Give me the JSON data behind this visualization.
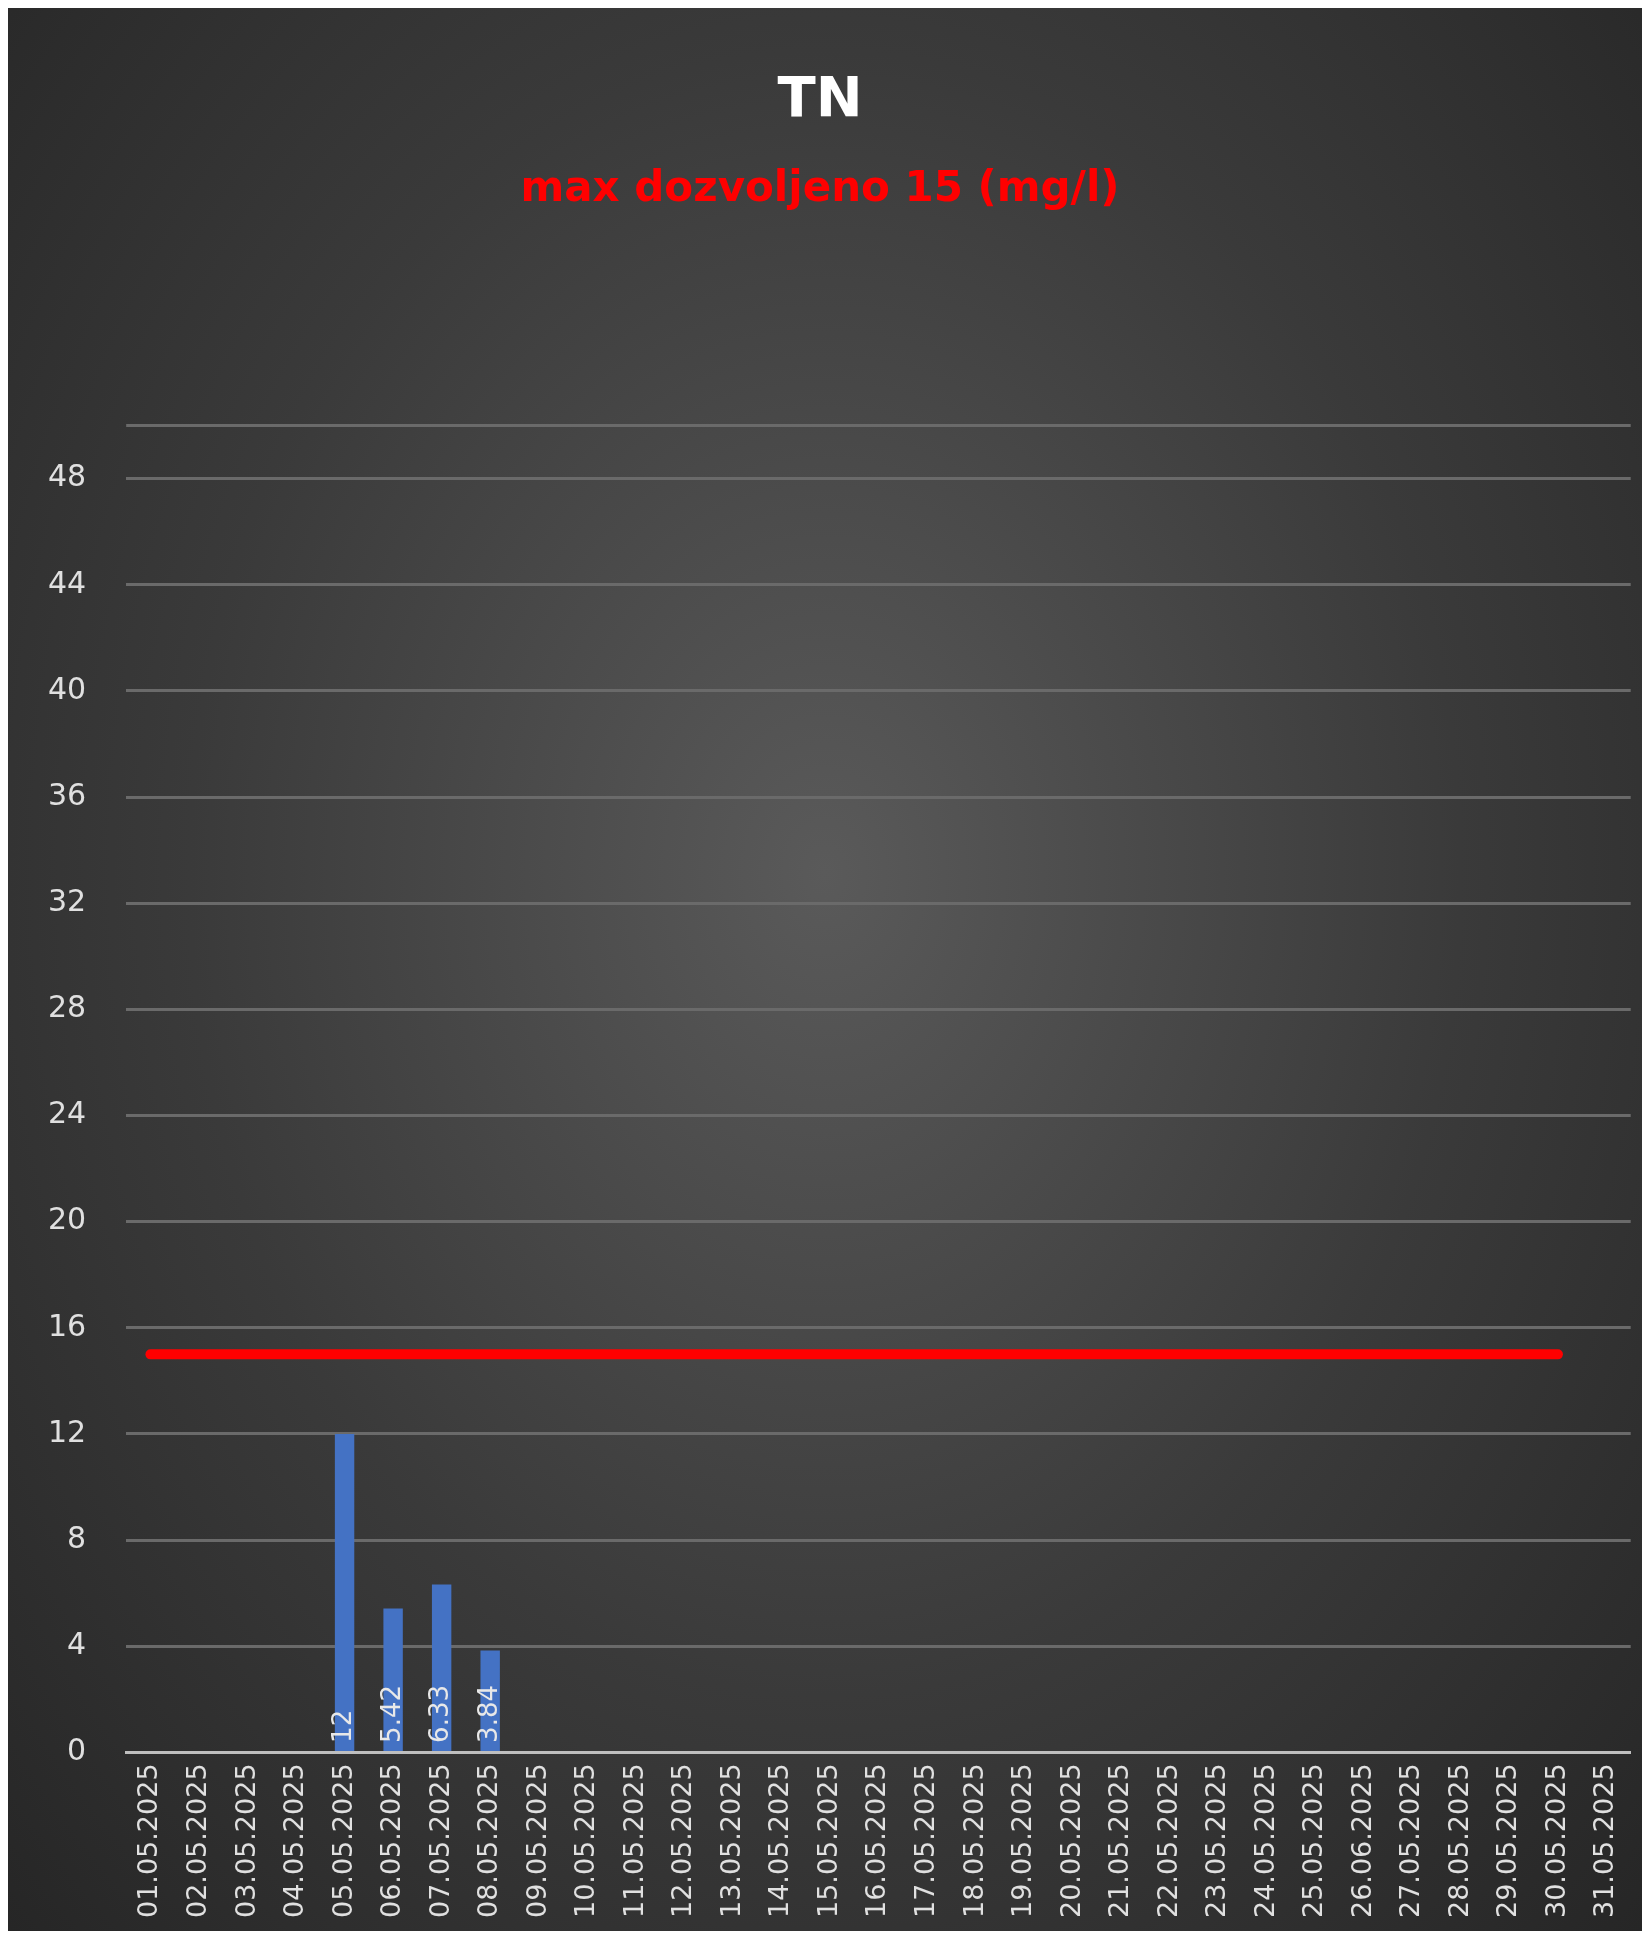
{
  "chart_data": {
    "type": "bar",
    "title": "TN",
    "subtitle": "max dozvoljeno 15 (mg/l)",
    "categories": [
      "01.05.2025",
      "02.05.2025",
      "03.05.2025",
      "04.05.2025",
      "05.05.2025",
      "06.05.2025",
      "07.05.2025",
      "08.05.2025",
      "09.05.2025",
      "10.05.2025",
      "11.05.2025",
      "12.05.2025",
      "13.05.2025",
      "14.05.2025",
      "15.05.2025",
      "16.05.2025",
      "17.05.2025",
      "18.05.2025",
      "19.05.2025",
      "20.05.2025",
      "21.05.2025",
      "22.05.2025",
      "23.05.2025",
      "24.05.2025",
      "25.05.2025",
      "26.06.2025",
      "27.05.2025",
      "28.05.2025",
      "29.05.2025",
      "30.05.2025",
      "31.05.2025"
    ],
    "series": [
      {
        "color": "#4472c4",
        "values": [
          null,
          null,
          null,
          null,
          12,
          5.42,
          6.33,
          3.84,
          null,
          null,
          null,
          null,
          null,
          null,
          null,
          null,
          null,
          null,
          null,
          null,
          null,
          null,
          null,
          null,
          null,
          null,
          null,
          null,
          null,
          null,
          null
        ],
        "value_labels": [
          null,
          null,
          null,
          null,
          "12",
          "5.42",
          "6.33",
          "3.84",
          null,
          null,
          null,
          null,
          null,
          null,
          null,
          null,
          null,
          null,
          null,
          null,
          null,
          null,
          null,
          null,
          null,
          null,
          null,
          null,
          null,
          null,
          null
        ]
      },
      {
        "type": "line",
        "color": "#ff0000",
        "values": [
          15,
          15,
          15,
          15,
          15,
          15,
          15,
          15,
          15,
          15,
          15,
          15,
          15,
          15,
          15,
          15,
          15,
          15,
          15,
          15,
          15,
          15,
          15,
          15,
          15,
          15,
          15,
          15,
          15,
          15,
          null
        ]
      }
    ],
    "ylim": [
      0,
      50
    ],
    "yticks": [
      0,
      4,
      8,
      12,
      16,
      20,
      24,
      28,
      32,
      36,
      40,
      44,
      48
    ],
    "grid": "y",
    "legend": false,
    "marker": "none"
  }
}
